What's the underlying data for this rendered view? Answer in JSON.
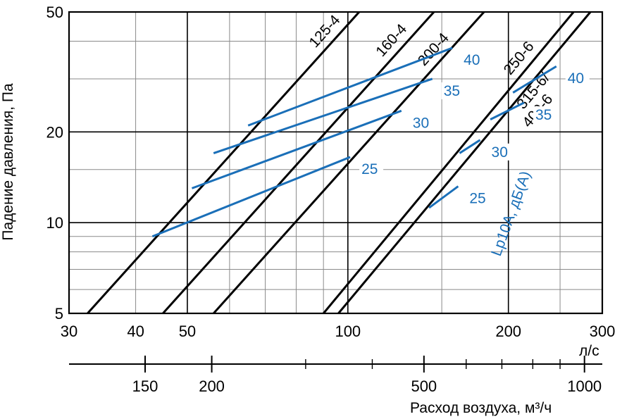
{
  "chart_data": {
    "type": "line",
    "x_scale": "log",
    "y_scale": "log",
    "xlim": [
      30,
      300
    ],
    "ylim": [
      5,
      50
    ],
    "xlabel": "л/с",
    "ylabel": "Падение давления, Па",
    "x_ticks": [
      30,
      40,
      50,
      100,
      200,
      300
    ],
    "y_ticks": [
      5,
      10,
      20,
      50
    ],
    "x2_ticks": [
      150,
      200,
      500,
      1000
    ],
    "x2_label": "Расход воздуха, м³/ч",
    "grid": true,
    "series": [
      {
        "name": "125-4",
        "x": [
          32.5,
          105
        ],
        "y": [
          5,
          50
        ]
      },
      {
        "name": "160-4",
        "x": [
          45,
          145
        ],
        "y": [
          5,
          50
        ]
      },
      {
        "name": "200-4",
        "x": [
          56,
          180
        ],
        "y": [
          5,
          50
        ]
      },
      {
        "name": "250-6",
        "x": [
          90,
          265
        ],
        "y": [
          5,
          50
        ]
      },
      {
        "name": "315-6/400-6",
        "x": [
          96,
          285
        ],
        "y": [
          5,
          50
        ]
      }
    ],
    "noise_series_title": "Lp10A, дБ(А)",
    "noise_lines": [
      {
        "name": "25",
        "x": [
          43,
          101
        ],
        "y": [
          9,
          16.5
        ]
      },
      {
        "name": "30",
        "x": [
          51,
          126
        ],
        "y": [
          13,
          23.5
        ]
      },
      {
        "name": "35",
        "x": [
          56,
          144
        ],
        "y": [
          17,
          30
        ]
      },
      {
        "name": "40",
        "x": [
          65,
          157
        ],
        "y": [
          21,
          38
        ]
      },
      {
        "name": "25",
        "x": [
          142,
          161
        ],
        "y": [
          11.2,
          13.2
        ]
      },
      {
        "name": "30",
        "x": [
          162,
          177
        ],
        "y": [
          17,
          18.8
        ]
      },
      {
        "name": "35",
        "x": [
          185,
          214
        ],
        "y": [
          22,
          25
        ]
      },
      {
        "name": "40",
        "x": [
          204,
          246
        ],
        "y": [
          27,
          33
        ]
      }
    ]
  }
}
